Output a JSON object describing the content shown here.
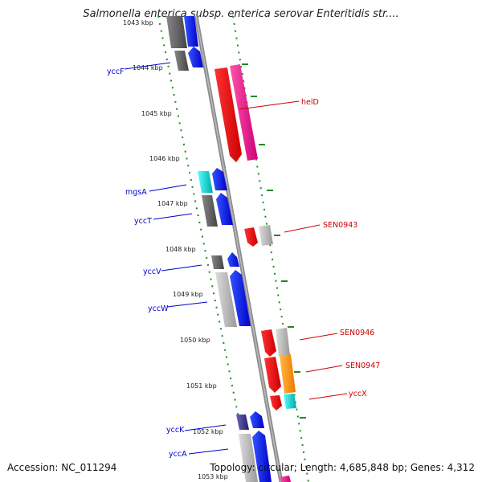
{
  "title": "Salmonella enterica subsp. enterica serovar Enteritidis str....",
  "footer": {
    "accession": "Accession: NC_011294",
    "summary": "Topology: circular; Length: 4,685,848 bp; Genes: 4,312"
  },
  "ticks": [
    "1043 kbp",
    "1044 kbp",
    "1045 kbp",
    "1046 kbp",
    "1047 kbp",
    "1048 kbp",
    "1049 kbp",
    "1050 kbp",
    "1051 kbp",
    "1052 kbp",
    "1053 kbp"
  ],
  "genes": [
    {
      "name": "yccF",
      "strand": "left",
      "color": "#0000cc"
    },
    {
      "name": "helD",
      "strand": "right",
      "color": "#cc0000"
    },
    {
      "name": "mgsA",
      "strand": "left",
      "color": "#0000cc"
    },
    {
      "name": "yccT",
      "strand": "left",
      "color": "#0000cc"
    },
    {
      "name": "SEN0943",
      "strand": "right",
      "color": "#cc0000"
    },
    {
      "name": "yccV",
      "strand": "left",
      "color": "#0000cc"
    },
    {
      "name": "yccW",
      "strand": "left",
      "color": "#0000cc"
    },
    {
      "name": "SEN0946",
      "strand": "right",
      "color": "#cc0000"
    },
    {
      "name": "SEN0947",
      "strand": "right",
      "color": "#cc0000"
    },
    {
      "name": "yccX",
      "strand": "right",
      "color": "#cc0000"
    },
    {
      "name": "yccK",
      "strand": "left",
      "color": "#0000cc"
    },
    {
      "name": "yccA",
      "strand": "left",
      "color": "#0000cc"
    }
  ],
  "colors": {
    "backbone": "#8c8c8c",
    "tick_green": "#1f8a1f",
    "forward_cds": "#0000ff",
    "reverse_cds": "#ff0000",
    "helD_cds": "#ff2288",
    "gray_feature": "#555555",
    "light_feature": "#bbbbbb",
    "cyan_feature": "#00cccc",
    "orange_feature": "#ff9900",
    "navy_feature": "#333388"
  }
}
